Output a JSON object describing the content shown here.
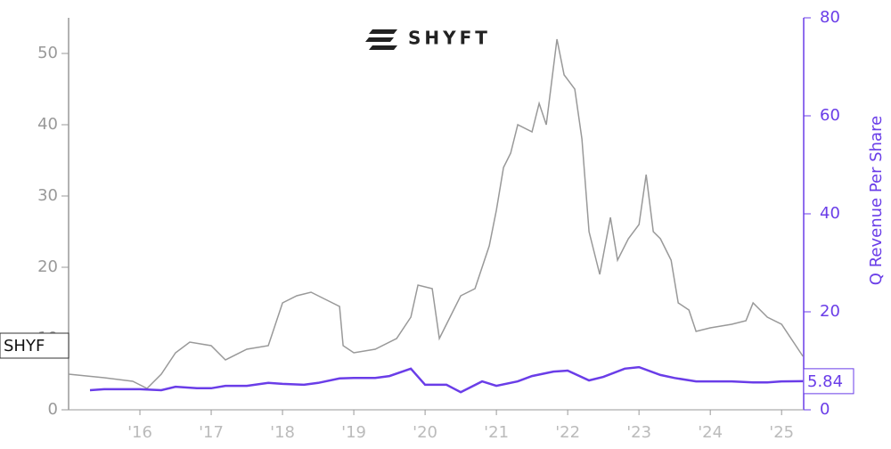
{
  "chart_data": {
    "type": "line",
    "logo_text": "SHYFT",
    "y2label": "Q Revenue Per Share",
    "xlim": [
      2015,
      2025.31
    ],
    "xticks": [
      {
        "value": 2016,
        "label": "'16"
      },
      {
        "value": 2017,
        "label": "'17"
      },
      {
        "value": 2018,
        "label": "'18"
      },
      {
        "value": 2019,
        "label": "'19"
      },
      {
        "value": 2020,
        "label": "'20"
      },
      {
        "value": 2021,
        "label": "'21"
      },
      {
        "value": 2022,
        "label": "'22"
      },
      {
        "value": 2023,
        "label": "'23"
      },
      {
        "value": 2024,
        "label": "'24"
      },
      {
        "value": 2025,
        "label": "'25"
      }
    ],
    "ylim": [
      0,
      55
    ],
    "yticks": [
      0,
      10,
      20,
      30,
      40,
      50
    ],
    "y2lim": [
      0,
      80
    ],
    "y2ticks": [
      0,
      20,
      40,
      60,
      80
    ],
    "series": [
      {
        "name": "SHYF",
        "color": "#999999",
        "x": [
          2015.0,
          2015.5,
          2015.9,
          2016.1,
          2016.3,
          2016.5,
          2016.7,
          2017.0,
          2017.2,
          2017.5,
          2017.8,
          2018.0,
          2018.2,
          2018.4,
          2018.6,
          2018.8,
          2018.85,
          2019.0,
          2019.3,
          2019.6,
          2019.8,
          2019.9,
          2020.1,
          2020.2,
          2020.3,
          2020.5,
          2020.7,
          2020.9,
          2021.0,
          2021.1,
          2021.2,
          2021.3,
          2021.5,
          2021.6,
          2021.7,
          2021.85,
          2021.95,
          2022.1,
          2022.2,
          2022.3,
          2022.45,
          2022.6,
          2022.7,
          2022.85,
          2023.0,
          2023.1,
          2023.2,
          2023.3,
          2023.45,
          2023.55,
          2023.7,
          2023.8,
          2024.0,
          2024.3,
          2024.5,
          2024.6,
          2024.8,
          2025.0,
          2025.2,
          2025.3
        ],
        "values": [
          5.0,
          4.5,
          4.0,
          3.0,
          5.0,
          8.0,
          9.5,
          9.0,
          7.0,
          8.5,
          9.0,
          15.0,
          16.0,
          16.5,
          15.5,
          14.5,
          9.0,
          8.0,
          8.5,
          10.0,
          13.0,
          17.5,
          17.0,
          10.0,
          12.0,
          16.0,
          17.0,
          23.0,
          28.0,
          34.0,
          36.0,
          40.0,
          39.0,
          43.0,
          40.0,
          52.0,
          47.0,
          45.0,
          38.0,
          25.0,
          19.0,
          27.0,
          21.0,
          24.0,
          26.0,
          33.0,
          25.0,
          24.0,
          21.0,
          15.0,
          14.0,
          11.0,
          11.5,
          12.0,
          12.5,
          15.0,
          13.0,
          12.0,
          9.0,
          7.5
        ]
      },
      {
        "color": "#6a3de8",
        "axis": "y2",
        "x": [
          2015.3,
          2015.5,
          2015.8,
          2016.0,
          2016.3,
          2016.5,
          2016.8,
          2017.0,
          2017.2,
          2017.5,
          2017.8,
          2018.0,
          2018.3,
          2018.5,
          2018.8,
          2019.0,
          2019.3,
          2019.5,
          2019.8,
          2020.0,
          2020.3,
          2020.5,
          2020.8,
          2021.0,
          2021.3,
          2021.5,
          2021.8,
          2022.0,
          2022.3,
          2022.5,
          2022.8,
          2023.0,
          2023.3,
          2023.5,
          2023.8,
          2024.0,
          2024.3,
          2024.6,
          2024.8,
          2025.0,
          2025.3
        ],
        "values": [
          4.0,
          4.2,
          4.2,
          4.2,
          4.0,
          4.7,
          4.4,
          4.4,
          4.9,
          4.9,
          5.5,
          5.3,
          5.1,
          5.5,
          6.4,
          6.5,
          6.5,
          6.9,
          8.4,
          5.1,
          5.1,
          3.6,
          5.8,
          4.9,
          5.8,
          6.9,
          7.8,
          8.0,
          6.0,
          6.7,
          8.4,
          8.7,
          7.1,
          6.5,
          5.8,
          5.8,
          5.8,
          5.6,
          5.6,
          5.8,
          5.84
        ]
      }
    ]
  }
}
